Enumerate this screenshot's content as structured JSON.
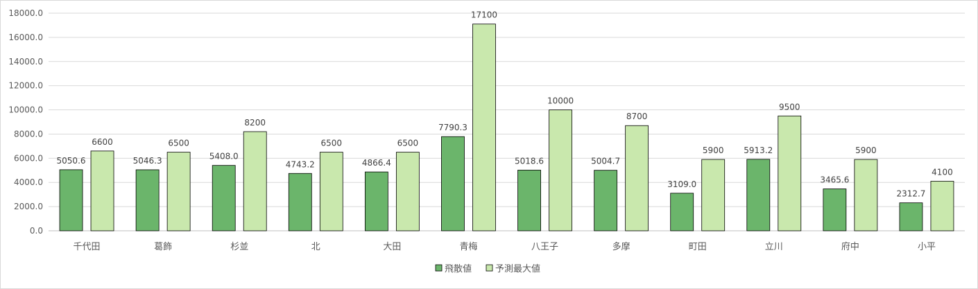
{
  "chart_data": {
    "type": "bar",
    "categories": [
      "千代田",
      "葛飾",
      "杉並",
      "北",
      "大田",
      "青梅",
      "八王子",
      "多摩",
      "町田",
      "立川",
      "府中",
      "小平"
    ],
    "series": [
      {
        "name": "飛散値",
        "values": [
          5050.6,
          5046.3,
          5408.0,
          4743.2,
          4866.4,
          7790.3,
          5018.6,
          5004.7,
          3109.0,
          5913.2,
          3465.6,
          2312.7
        ],
        "labels": [
          "5050.6",
          "5046.3",
          "5408.0",
          "4743.2",
          "4866.4",
          "7790.3",
          "5018.6",
          "5004.7",
          "3109.0",
          "5913.2",
          "3465.6",
          "2312.7"
        ],
        "color": "#6bb56b"
      },
      {
        "name": "予測最大値",
        "values": [
          6600,
          6500,
          8200,
          6500,
          6500,
          17100,
          10000,
          8700,
          5900,
          9500,
          5900,
          4100
        ],
        "labels": [
          "6600",
          "6500",
          "8200",
          "6500",
          "6500",
          "17100",
          "10000",
          "8700",
          "5900",
          "9500",
          "5900",
          "4100"
        ],
        "color": "#c9e8ad"
      }
    ],
    "ylim": [
      0,
      18000
    ],
    "yticks": [
      "0.0",
      "2000.0",
      "4000.0",
      "6000.0",
      "8000.0",
      "10000.0",
      "12000.0",
      "14000.0",
      "16000.0",
      "18000.0"
    ],
    "grid": true,
    "legend": "bottom-center"
  }
}
